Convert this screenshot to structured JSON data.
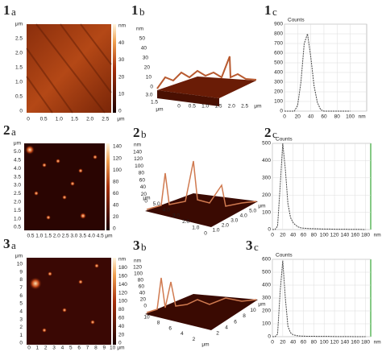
{
  "panels": [
    {
      "number": "1",
      "letter": "a",
      "left": [
        "μm",
        "2.5",
        "2.0",
        "1.5",
        "1.0",
        "0.5",
        "0"
      ],
      "bottom": [
        "0",
        "0.5",
        "1.0",
        "1.5",
        "2.0",
        "2.5",
        "μm"
      ],
      "right": [
        "nm",
        "40",
        "30",
        "20",
        "10",
        "0"
      ]
    },
    {
      "number": "1",
      "letter": "b",
      "left": [
        "nm",
        "50",
        "40",
        "30",
        "20",
        "10",
        "0"
      ],
      "bottom": [
        "0",
        "0.5",
        "1.0",
        "1.5",
        "2.0",
        "2.5",
        "μm"
      ],
      "depth": [
        "3.0",
        "1.5",
        "μm"
      ]
    },
    {
      "number": "1",
      "letter": "c"
    },
    {
      "number": "2",
      "letter": "a",
      "left": [
        "μm",
        "5.0",
        "4.5",
        "4.0",
        "3.5",
        "3.0",
        "2.5",
        "2.0",
        "1.5",
        "1.0",
        "0.5"
      ],
      "bottom": [
        "0.5",
        "1.0",
        "1.5",
        "2.0",
        "2.5",
        "3.0",
        "3.5",
        "4.0",
        "4.5",
        "μm"
      ],
      "right": [
        "140",
        "120",
        "100",
        "80",
        "60",
        "40",
        "20",
        "0"
      ]
    },
    {
      "number": "2",
      "letter": "b",
      "left": [
        "nm",
        "140",
        "120",
        "100",
        "80",
        "60",
        "40",
        "20",
        "0"
      ],
      "bottom": [
        "1.0",
        "2.0",
        "3.0",
        "4.0",
        "5.0",
        "μm"
      ],
      "depth": [
        "μm",
        "5.0",
        "4.0",
        "3.0",
        "2.0",
        "1.0",
        "0"
      ]
    },
    {
      "number": "2",
      "letter": "c"
    },
    {
      "number": "3",
      "letter": "a",
      "left": [
        "μm",
        "10",
        "9",
        "8",
        "7",
        "6",
        "5",
        "4",
        "3",
        "2",
        "1",
        "0"
      ],
      "bottom": [
        "0",
        "1",
        "2",
        "3",
        "4",
        "5",
        "6",
        "7",
        "8",
        "9",
        "10",
        "μm"
      ],
      "right": [
        "nm",
        "180",
        "160",
        "140",
        "120",
        "100",
        "80",
        "60",
        "40",
        "20",
        "0"
      ]
    },
    {
      "number": "3",
      "letter": "b",
      "left": [
        "nm",
        "120",
        "100",
        "80",
        "60",
        "40",
        "20",
        "0"
      ],
      "bottom": [
        "2",
        "4",
        "6",
        "8",
        "10",
        "μm"
      ],
      "depth": [
        "10",
        "8",
        "6",
        "4",
        "2",
        "μm"
      ]
    },
    {
      "number": "3",
      "letter": "c"
    }
  ],
  "chart_data": [
    {
      "type": "line",
      "y_label": "Counts",
      "x_label": "nm",
      "color": "#444444",
      "grid": true,
      "x": [
        0,
        5,
        10,
        15,
        20,
        25,
        30,
        35,
        40,
        45,
        50,
        55,
        60,
        65,
        70,
        75,
        80,
        85,
        90,
        95,
        100
      ],
      "values": [
        0,
        0,
        0,
        0,
        60,
        300,
        700,
        800,
        560,
        260,
        90,
        15,
        0,
        0,
        0,
        0,
        0,
        0,
        0,
        0,
        0
      ],
      "xlim": [
        0,
        125
      ],
      "ylim": [
        0,
        900
      ],
      "xticks": [
        0,
        20,
        40,
        60,
        80,
        100
      ],
      "yticks": [
        0,
        100,
        200,
        300,
        400,
        500,
        600,
        700,
        800,
        900
      ]
    },
    {
      "type": "line",
      "y_label": "Counts",
      "x_label": "nm",
      "color": "#444444",
      "grid": true,
      "x": [
        0,
        5,
        10,
        15,
        20,
        25,
        30,
        35,
        40,
        45,
        50,
        55,
        60,
        70,
        80,
        90,
        100,
        110,
        120,
        130,
        140,
        150,
        160,
        170,
        180
      ],
      "values": [
        0,
        0,
        20,
        250,
        500,
        350,
        150,
        70,
        40,
        25,
        15,
        10,
        8,
        6,
        5,
        4,
        3,
        3,
        2,
        2,
        2,
        1,
        1,
        1,
        0
      ],
      "xlim": [
        0,
        190
      ],
      "ylim": [
        0,
        500
      ],
      "xticks": [
        0,
        20,
        40,
        60,
        80,
        100,
        120,
        140,
        160,
        180
      ],
      "yticks": [
        0,
        100,
        200,
        300,
        400,
        500
      ]
    },
    {
      "type": "line",
      "y_label": "Counts",
      "x_label": "nm",
      "color": "#444444",
      "grid": true,
      "x": [
        0,
        5,
        10,
        15,
        20,
        25,
        30,
        35,
        40,
        45,
        50,
        60,
        70,
        80,
        90,
        100,
        110,
        120,
        130,
        140,
        150,
        160,
        170,
        180
      ],
      "values": [
        0,
        0,
        20,
        350,
        590,
        300,
        80,
        30,
        15,
        10,
        6,
        4,
        3,
        3,
        2,
        2,
        2,
        1,
        1,
        1,
        1,
        0,
        0,
        0
      ],
      "xlim": [
        0,
        190
      ],
      "ylim": [
        0,
        600
      ],
      "xticks": [
        0,
        20,
        40,
        60,
        80,
        100,
        120,
        140,
        160,
        180
      ],
      "yticks": [
        0,
        100,
        200,
        300,
        400,
        500,
        600
      ]
    }
  ]
}
